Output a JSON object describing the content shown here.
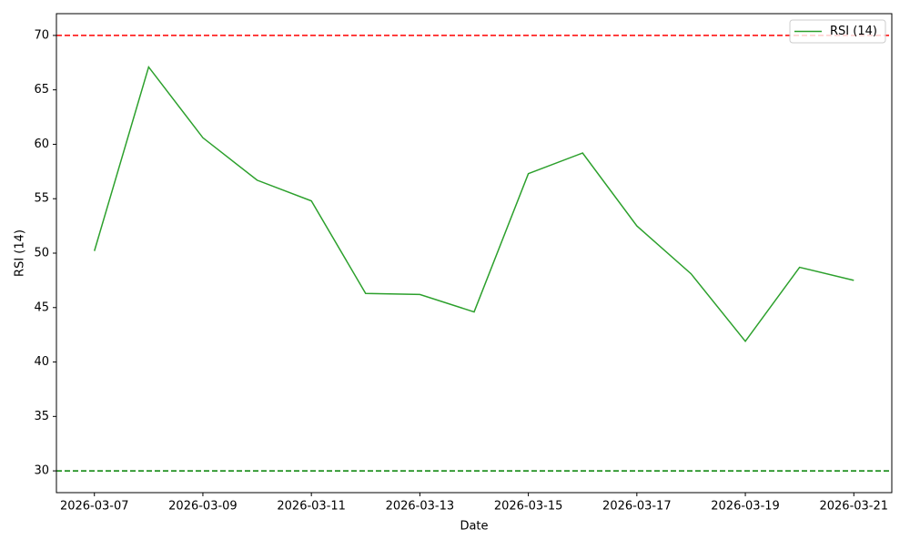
{
  "chart_data": {
    "type": "line",
    "xlabel": "Date",
    "ylabel": "RSI (14)",
    "x": [
      "2026-03-07",
      "2026-03-08",
      "2026-03-09",
      "2026-03-10",
      "2026-03-11",
      "2026-03-12",
      "2026-03-13",
      "2026-03-14",
      "2026-03-15",
      "2026-03-16",
      "2026-03-17",
      "2026-03-18",
      "2026-03-19",
      "2026-03-20",
      "2026-03-21"
    ],
    "series": [
      {
        "name": "RSI (14)",
        "color": "#2ca02c",
        "values": [
          50.2,
          67.1,
          60.6,
          56.7,
          54.8,
          46.3,
          46.2,
          44.6,
          57.3,
          59.2,
          52.5,
          48.1,
          41.9,
          48.7,
          47.5
        ]
      }
    ],
    "hlines": [
      {
        "value": 70,
        "color": "#ff0000"
      },
      {
        "value": 30,
        "color": "#008000"
      }
    ],
    "xlim": [
      "2026-03-06T07:12:00Z",
      "2026-03-21T16:48:00Z"
    ],
    "xticks": [
      "2026-03-07",
      "2026-03-09",
      "2026-03-11",
      "2026-03-13",
      "2026-03-15",
      "2026-03-17",
      "2026-03-19",
      "2026-03-21"
    ],
    "ylim": [
      28,
      72
    ],
    "yticks": [
      30,
      35,
      40,
      45,
      50,
      55,
      60,
      65,
      70
    ],
    "legend": "upper right",
    "grid": false
  }
}
